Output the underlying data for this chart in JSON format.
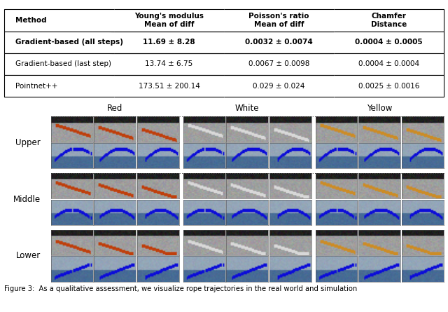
{
  "table": {
    "col_headers": [
      "Method",
      "Young's modulus\nMean of diff",
      "Poisson's ratio\nMean of diff",
      "Chamfer\nDistance"
    ],
    "rows": [
      [
        "Gradient-based (all steps)",
        "11.69 ± 8.28",
        "0.0032 ± 0.0074",
        "0.0004 ± 0.0005"
      ],
      [
        "Gradient-based (last step)",
        "13.74 ± 6.75",
        "0.0067 ± 0.0098",
        "0.0004 ± 0.0004"
      ],
      [
        "Pointnet++",
        "173.51 ± 200.14",
        "0.029 ± 0.024",
        "0.0025 ± 0.0016"
      ]
    ],
    "bold_row": 0
  },
  "col_labels": [
    "Red",
    "White",
    "Yellow"
  ],
  "row_labels": [
    "Upper",
    "Middle",
    "Lower"
  ],
  "grid_rows": 3,
  "grid_cols": 3,
  "bg_color": "#ffffff",
  "figure_caption": "Figure 3:  As a qualitative assessment, we visualize rope trajectories in the real world and simulation"
}
